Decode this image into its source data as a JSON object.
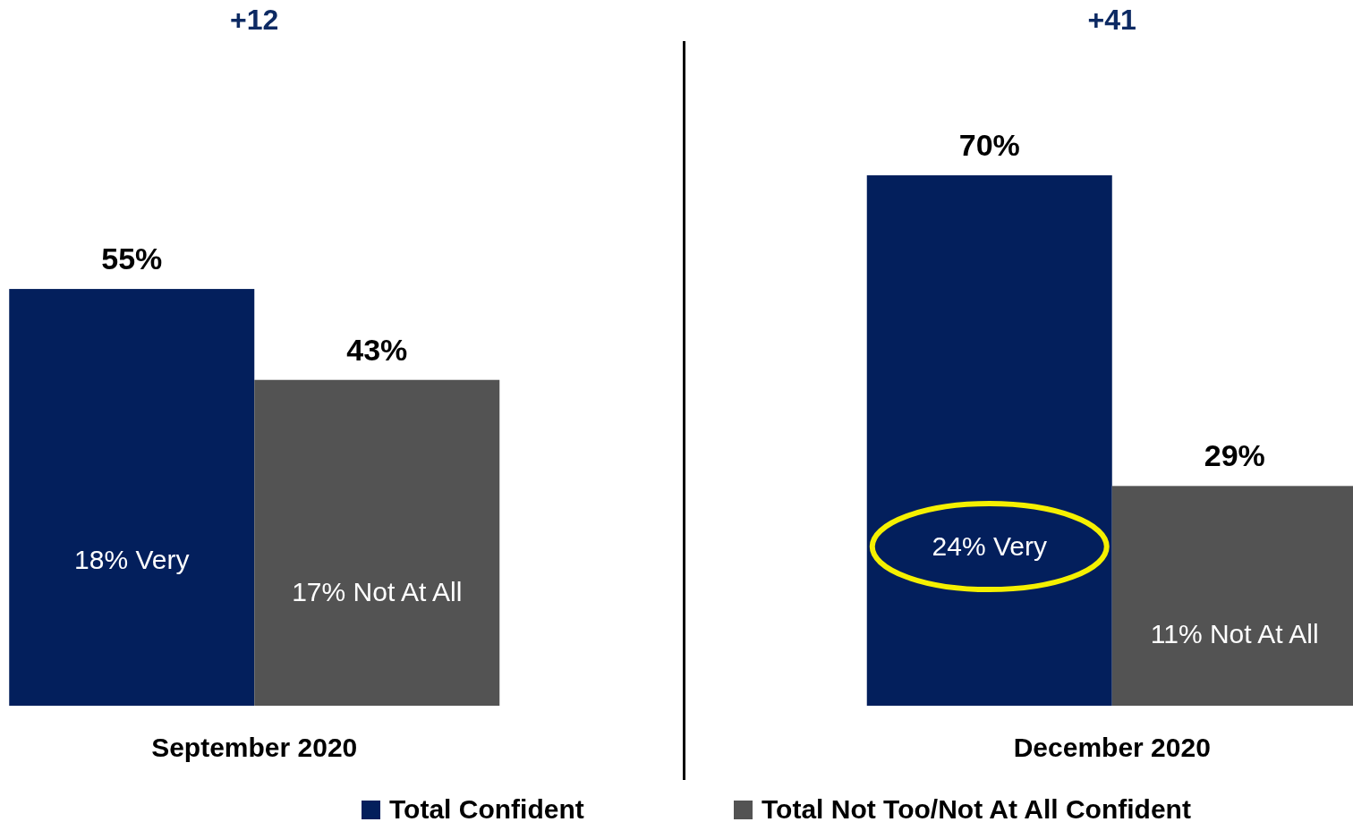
{
  "chart_data": {
    "type": "bar",
    "categories": [
      "September 2020",
      "December 2020"
    ],
    "series": [
      {
        "name": "Total Confident",
        "color": "#031f5c",
        "values": [
          55,
          70
        ],
        "value_labels": [
          "55%",
          "70%"
        ]
      },
      {
        "name": "Total Not Too/Not At All Confident",
        "color": "#535353",
        "values": [
          43,
          29
        ],
        "value_labels": [
          "43%",
          "29%"
        ]
      }
    ],
    "legend": "bottom",
    "annotations": [
      "+12",
      "+41",
      "18% Very",
      "17% Not At All",
      "24% Very",
      "11% Not At All"
    ]
  }
}
